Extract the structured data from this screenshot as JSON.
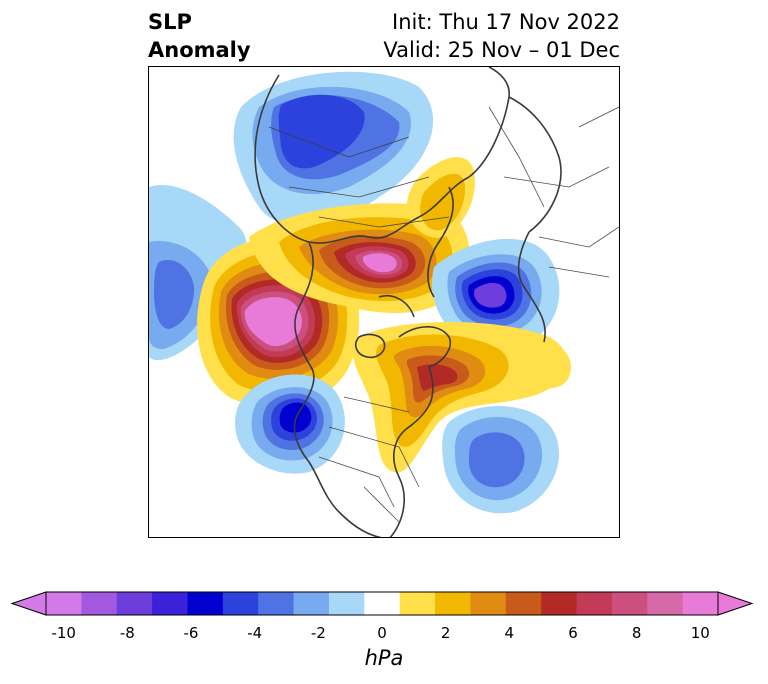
{
  "title": {
    "left_line1": "SLP",
    "left_line2": "Anomaly",
    "right_line1": "Init: Thu 17 Nov 2022",
    "right_line2": "Valid: 25 Nov – 01 Dec"
  },
  "colorbar": {
    "units": "hPa",
    "min": -10,
    "max": 10,
    "step": 1,
    "extend": "both",
    "ticks": [
      "-10",
      "-8",
      "-6",
      "-4",
      "-2",
      "0",
      "2",
      "4",
      "6",
      "8",
      "10"
    ],
    "colors": [
      "#d37ae8",
      "#a259e0",
      "#6d3ddc",
      "#3b22d8",
      "#0000cf",
      "#2b42dc",
      "#4f73e3",
      "#77aaee",
      "#a8d8f8",
      "#ffffff",
      "#ffe04a",
      "#f2b700",
      "#e08b12",
      "#c95b1a",
      "#b22a26",
      "#c23a55",
      "#cc4f7e",
      "#d66aa8",
      "#e87ad8"
    ]
  },
  "map": {
    "projection": "north-polar-stereographic",
    "field": "SLP anomaly"
  }
}
